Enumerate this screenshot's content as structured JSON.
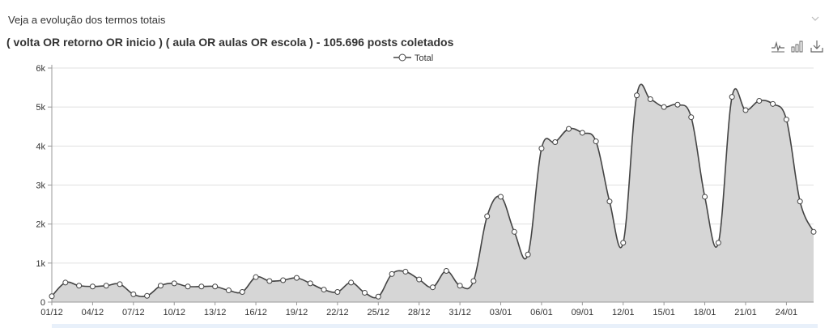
{
  "header": {
    "section_title": "Veja a evolução dos termos totais",
    "chart_title": "( volta OR retorno OR inicio ) ( aula OR aulas OR escola ) - 105.696 posts coletados"
  },
  "toolbar": {
    "icons": [
      "line-chart-icon",
      "bar-chart-icon",
      "download-icon"
    ]
  },
  "colors": {
    "line": "#444444",
    "area": "#d6d6d6",
    "grid": "#e0e0e0",
    "text": "#333333"
  },
  "chart_data": {
    "type": "area",
    "series": [
      {
        "name": "Total",
        "values": [
          150,
          500,
          420,
          400,
          420,
          460,
          200,
          160,
          420,
          480,
          400,
          400,
          400,
          300,
          260,
          640,
          540,
          560,
          620,
          480,
          320,
          260,
          500,
          240,
          140,
          720,
          780,
          580,
          380,
          800,
          420,
          540,
          2200,
          2700,
          1800,
          1220,
          3940,
          4100,
          4440,
          4340,
          4120,
          2580,
          1520,
          5300,
          5200,
          5000,
          5060,
          4740,
          2700,
          1520,
          5260,
          4920,
          5160,
          5080,
          4680,
          2580,
          1800
        ]
      }
    ],
    "x_tick_labels": [
      "01/12",
      "04/12",
      "07/12",
      "10/12",
      "13/12",
      "16/12",
      "19/12",
      "22/12",
      "25/12",
      "28/12",
      "31/12",
      "03/01",
      "06/01",
      "09/01",
      "12/01",
      "15/01",
      "18/01",
      "21/01",
      "24/01"
    ],
    "tick_every": 3,
    "y_ticks": [
      0,
      1000,
      2000,
      3000,
      4000,
      5000,
      6000
    ],
    "y_tick_labels": [
      "0",
      "1k",
      "2k",
      "3k",
      "4k",
      "5k",
      "6k"
    ],
    "ylim": [
      0,
      6000
    ],
    "legend": "top-center",
    "grid": true
  }
}
